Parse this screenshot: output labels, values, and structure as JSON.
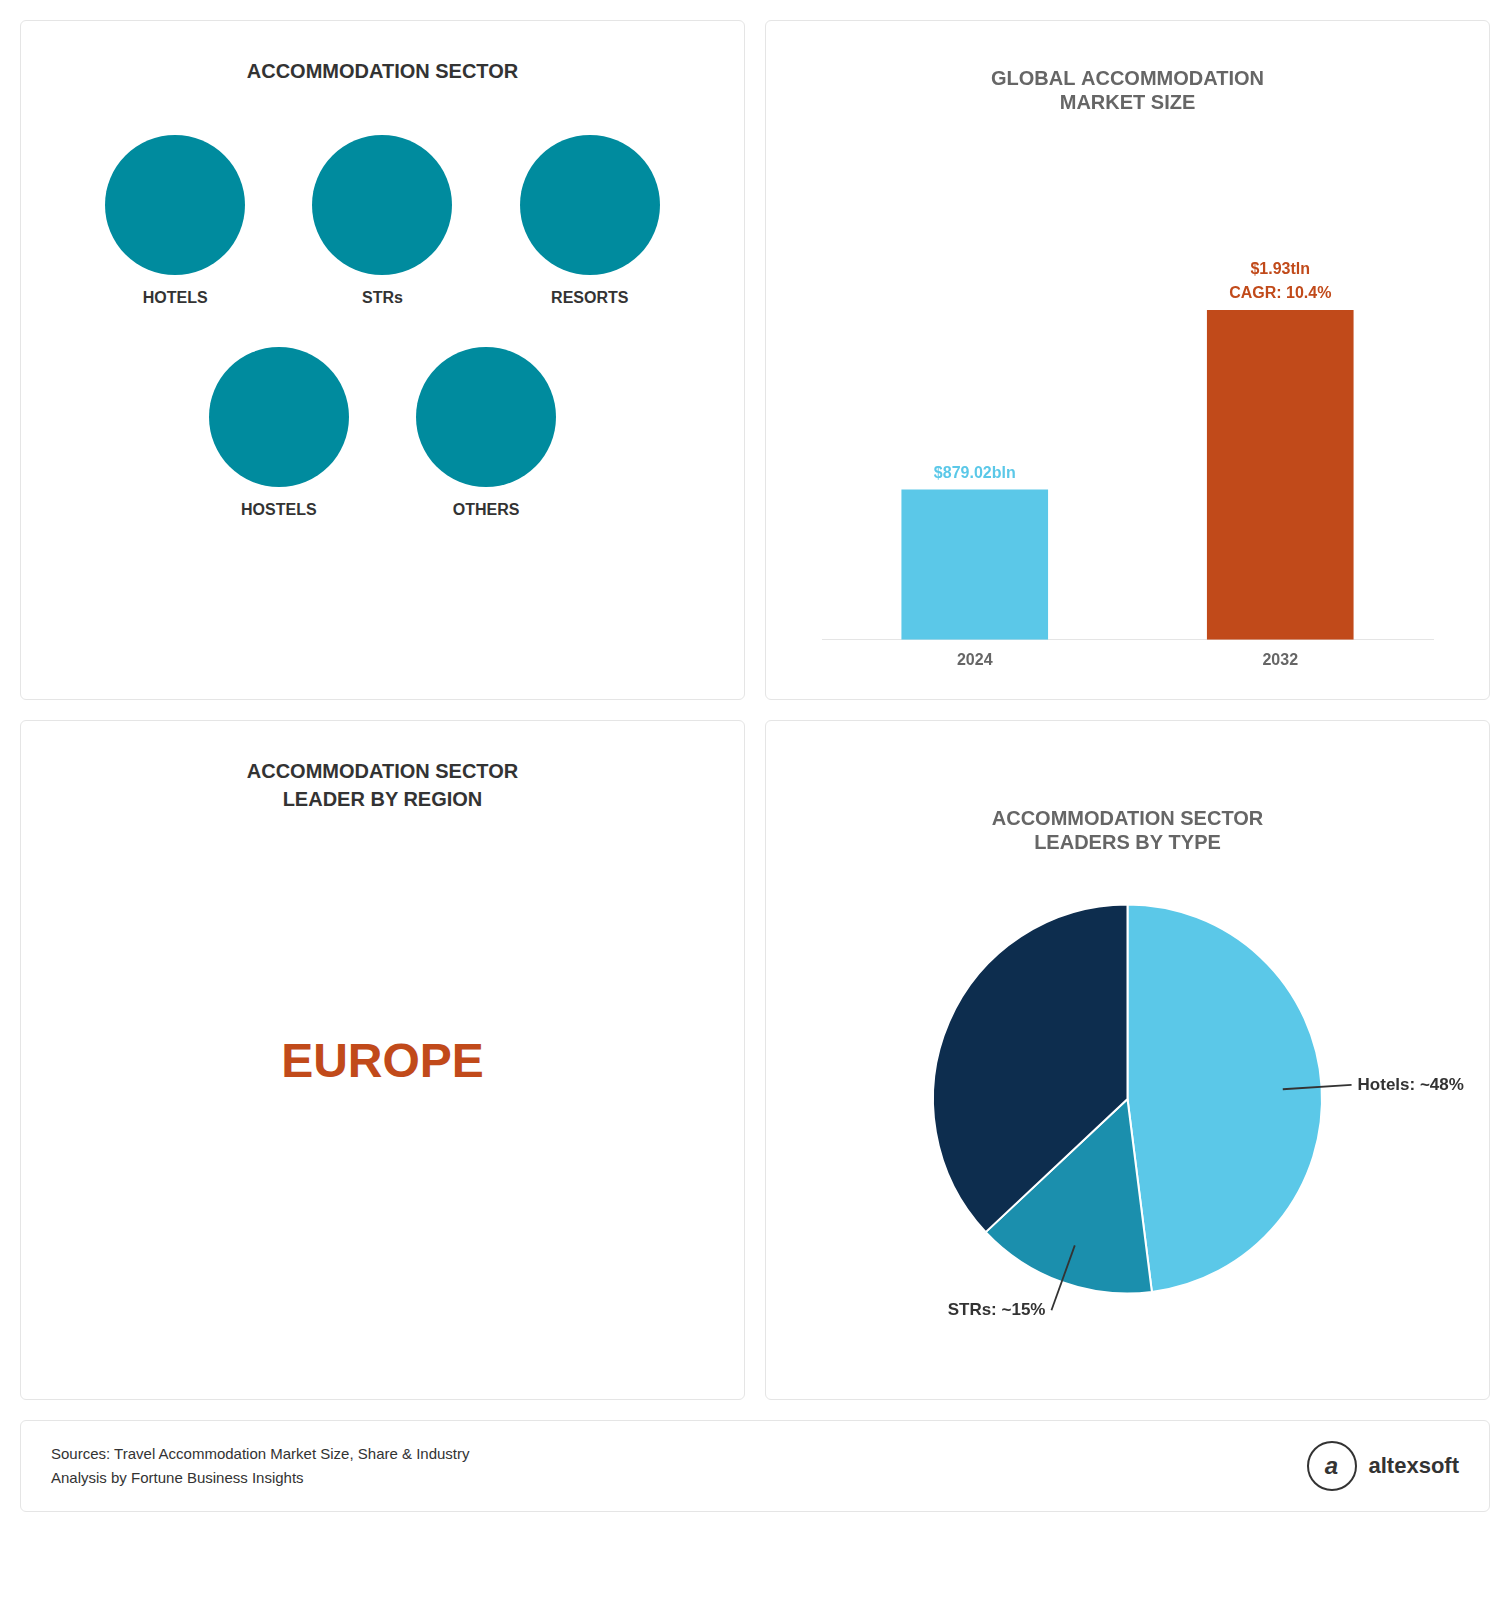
{
  "chart_data": [
    {
      "type": "text",
      "title": "ACCOMMODATION SECTOR",
      "annotations": [
        "HOTELS",
        "STRs",
        "RESORTS",
        "HOSTELS",
        "OTHERS"
      ],
      "color": "#008B9E"
    },
    {
      "type": "bar",
      "title": "GLOBAL ACCOMMODATION\nMARKET SIZE",
      "categories": [
        "2024",
        "2032"
      ],
      "values": [
        879.02,
        1930
      ],
      "value_labels": [
        "$879.02bln",
        "$1.93tln"
      ],
      "data_labels": true,
      "annotations": [
        "CAGR: 10.4%"
      ],
      "colors": [
        "#5BC8E8",
        "#C14A1A"
      ],
      "ylim": [
        0,
        2895
      ],
      "grid": false,
      "tick_labels": "x"
    },
    {
      "type": "text",
      "title": "ACCOMMODATION SECTOR\nLEADER BY REGION",
      "annotations": [
        "EUROPE"
      ],
      "color": "#C14A1A"
    },
    {
      "type": "pie",
      "title": "ACCOMMODATION SECTOR\nLEADERS BY TYPE",
      "values": [
        48,
        15,
        37
      ],
      "colors": [
        "#5BC8E8",
        "#1B8FAD",
        "#0d2d4e"
      ],
      "annotations": [
        "Hotels: ~48%",
        "STRs: ~15%"
      ]
    },
    {
      "type": "text",
      "annotations": [
        "Sources: Travel Accommodation Market Size, Share & Industry\nAnalysis by Fortune Business Insights",
        "a",
        "altexsoft"
      ]
    }
  ]
}
